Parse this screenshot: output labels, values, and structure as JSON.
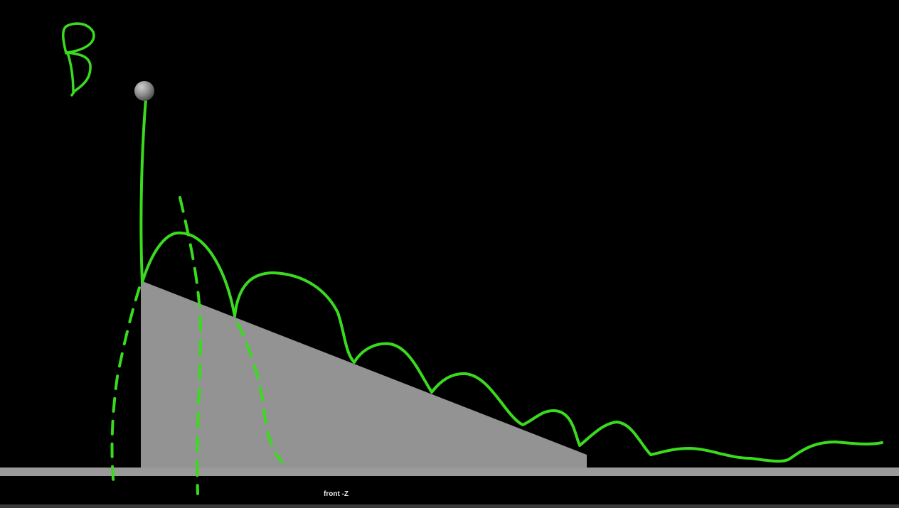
{
  "viewport": {
    "camera_label": "front -Z",
    "background_color": "#000000"
  },
  "scene": {
    "ground_color": "#9a9a9a",
    "ramp_color": "#939393",
    "ball_color": "#8c8c8c"
  },
  "annotations": {
    "stroke_color": "#3adb1f",
    "handwritten_letter": "B"
  }
}
